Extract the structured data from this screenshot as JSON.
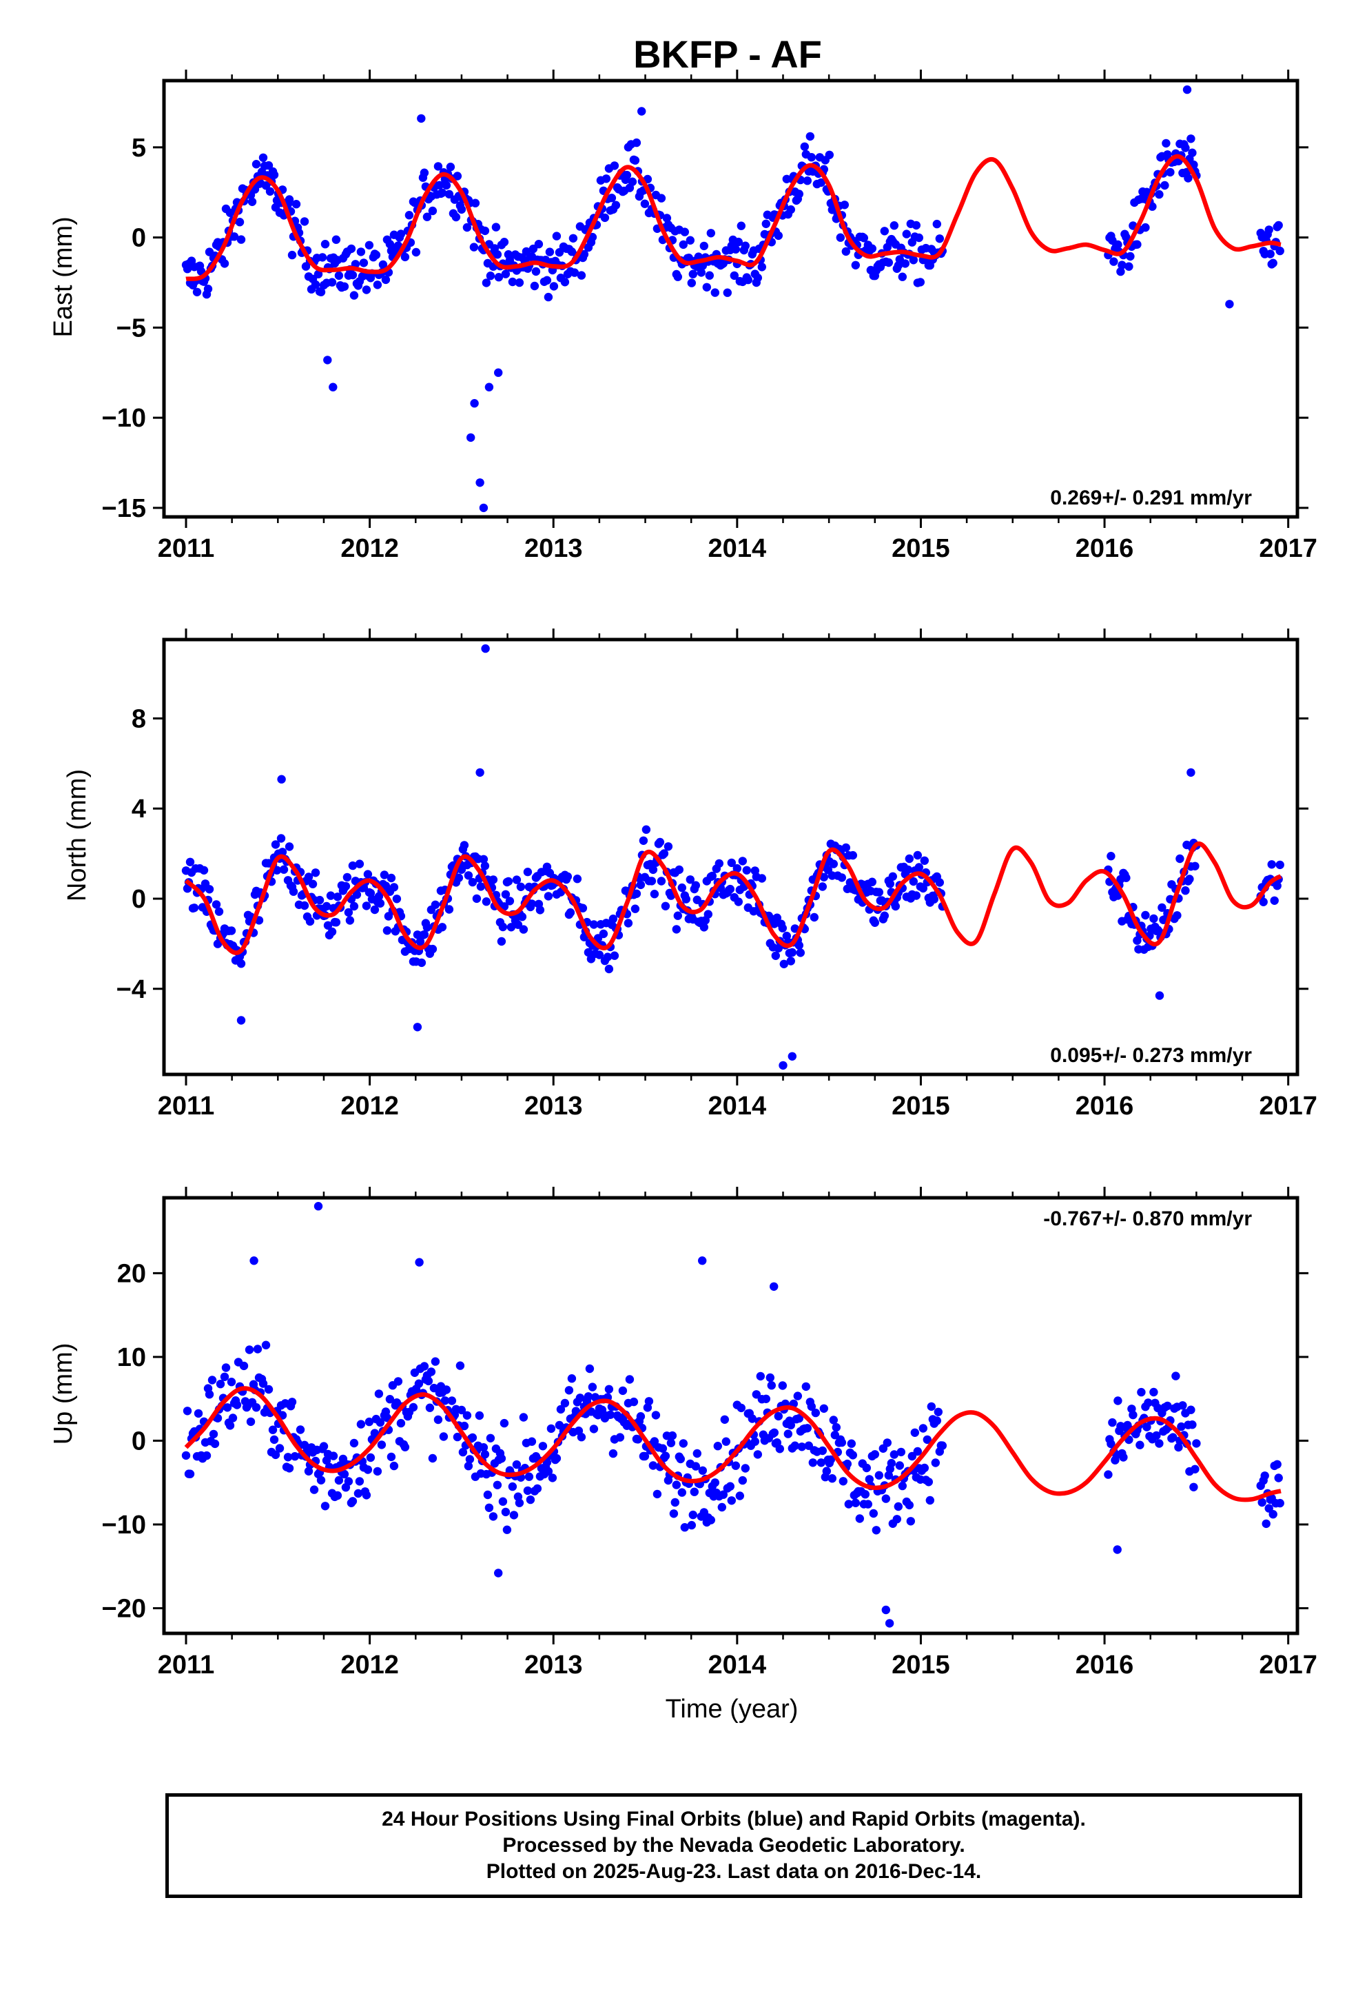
{
  "title": "BKFP - AF",
  "xlabel": "Time (year)",
  "footer": {
    "line1": "24 Hour Positions Using Final Orbits (blue) and Rapid Orbits (magenta).",
    "line2": "Processed by the Nevada Geodetic Laboratory.",
    "line3": "Plotted on 2025-Aug-23. Last data on 2016-Dec-14."
  },
  "colors": {
    "final_points": "#0000ff",
    "model": "#ff0000",
    "frame": "#000000"
  },
  "chart_data": [
    {
      "type": "scatter",
      "name": "east",
      "ylabel": "East (mm)",
      "rate": "0.269+/- 0.291 mm/yr",
      "rate_position": "bottom-right",
      "xlim": [
        2010.88,
        2017.05
      ],
      "ylim": [
        -15.5,
        8.7
      ],
      "xticks": [
        2011,
        2012,
        2013,
        2014,
        2015,
        2016,
        2017
      ],
      "yticks": [
        5,
        0,
        -5,
        -10,
        -15
      ],
      "ytick_labels": [
        "5",
        "0",
        "−5",
        "−10",
        "−15"
      ],
      "data_segments": [
        [
          2011.0,
          2015.12
        ],
        [
          2016.02,
          2016.5
        ],
        [
          2016.85,
          2016.96
        ]
      ],
      "scatter_spread": 1.1,
      "model_curve": {
        "x": [
          2011.0,
          2011.1,
          2011.2,
          2011.3,
          2011.4,
          2011.5,
          2011.6,
          2011.7,
          2011.8,
          2011.9,
          2012.0,
          2012.1,
          2012.2,
          2012.3,
          2012.4,
          2012.5,
          2012.6,
          2012.7,
          2012.8,
          2012.9,
          2013.0,
          2013.1,
          2013.2,
          2013.3,
          2013.4,
          2013.5,
          2013.6,
          2013.7,
          2013.8,
          2013.9,
          2014.0,
          2014.1,
          2014.2,
          2014.3,
          2014.4,
          2014.5,
          2014.6,
          2014.7,
          2014.8,
          2014.9,
          2015.0,
          2015.1,
          2015.2,
          2015.3,
          2015.4,
          2015.5,
          2015.6,
          2015.7,
          2015.8,
          2015.9,
          2016.0,
          2016.1,
          2016.2,
          2016.3,
          2016.4,
          2016.5,
          2016.6,
          2016.7,
          2016.8,
          2016.9,
          2016.96
        ],
        "y": [
          -2.3,
          -2.1,
          -0.6,
          1.9,
          3.3,
          2.6,
          0.1,
          -1.6,
          -1.8,
          -1.7,
          -1.9,
          -1.7,
          -0.2,
          2.3,
          3.5,
          2.5,
          0.0,
          -1.5,
          -1.6,
          -1.4,
          -1.6,
          -1.4,
          0.4,
          2.6,
          3.9,
          2.9,
          0.3,
          -1.3,
          -1.3,
          -1.1,
          -1.3,
          -1.4,
          0.6,
          2.9,
          4.0,
          2.9,
          0.1,
          -1.0,
          -0.9,
          -0.8,
          -1.0,
          -0.9,
          1.3,
          3.6,
          4.3,
          2.7,
          0.3,
          -0.7,
          -0.6,
          -0.4,
          -0.7,
          -0.8,
          1.0,
          3.4,
          4.5,
          3.2,
          0.5,
          -0.6,
          -0.5,
          -0.3,
          -0.4
        ]
      },
      "notable_points": [
        {
          "x": 2012.62,
          "y": -15.0
        },
        {
          "x": 2012.6,
          "y": -13.6
        },
        {
          "x": 2012.55,
          "y": -11.1
        },
        {
          "x": 2012.57,
          "y": -9.2
        },
        {
          "x": 2012.65,
          "y": -8.3
        },
        {
          "x": 2012.7,
          "y": -7.5
        },
        {
          "x": 2011.8,
          "y": -8.3
        },
        {
          "x": 2011.77,
          "y": -6.8
        },
        {
          "x": 2016.45,
          "y": 8.2
        },
        {
          "x": 2013.48,
          "y": 7.0
        },
        {
          "x": 2012.28,
          "y": 6.6
        },
        {
          "x": 2016.68,
          "y": -3.7
        }
      ]
    },
    {
      "type": "scatter",
      "name": "north",
      "ylabel": "North (mm)",
      "rate": "0.095+/- 0.273 mm/yr",
      "rate_position": "bottom-right",
      "xlim": [
        2010.88,
        2017.05
      ],
      "ylim": [
        -7.8,
        11.5
      ],
      "xticks": [
        2011,
        2012,
        2013,
        2014,
        2015,
        2016,
        2017
      ],
      "yticks": [
        8,
        4,
        0,
        -4
      ],
      "ytick_labels": [
        "8",
        "4",
        "0",
        "−4"
      ],
      "data_segments": [
        [
          2011.0,
          2015.12
        ],
        [
          2016.02,
          2016.5
        ],
        [
          2016.85,
          2016.96
        ]
      ],
      "scatter_spread": 0.9,
      "model_curve": {
        "x": [
          2011.0,
          2011.1,
          2011.2,
          2011.3,
          2011.4,
          2011.5,
          2011.6,
          2011.7,
          2011.8,
          2011.9,
          2012.0,
          2012.1,
          2012.2,
          2012.3,
          2012.4,
          2012.5,
          2012.6,
          2012.7,
          2012.8,
          2012.9,
          2013.0,
          2013.1,
          2013.2,
          2013.3,
          2013.4,
          2013.5,
          2013.6,
          2013.7,
          2013.8,
          2013.9,
          2014.0,
          2014.1,
          2014.2,
          2014.3,
          2014.4,
          2014.5,
          2014.6,
          2014.7,
          2014.8,
          2014.9,
          2015.0,
          2015.1,
          2015.2,
          2015.3,
          2015.4,
          2015.5,
          2015.6,
          2015.7,
          2015.8,
          2015.9,
          2016.0,
          2016.1,
          2016.2,
          2016.3,
          2016.4,
          2016.5,
          2016.6,
          2016.7,
          2016.8,
          2016.9,
          2016.96
        ],
        "y": [
          0.8,
          0.0,
          -1.9,
          -2.3,
          -0.3,
          1.8,
          1.2,
          -0.4,
          -0.7,
          0.3,
          0.8,
          0.0,
          -1.7,
          -2.1,
          -0.3,
          1.8,
          1.2,
          -0.4,
          -0.6,
          0.4,
          0.8,
          0.0,
          -1.7,
          -2.1,
          -0.2,
          2.0,
          1.4,
          -0.3,
          -0.5,
          0.7,
          1.1,
          0.1,
          -1.6,
          -2.0,
          -0.1,
          2.1,
          1.5,
          -0.1,
          -0.4,
          0.7,
          1.1,
          0.2,
          -1.5,
          -1.9,
          0.2,
          2.2,
          1.6,
          -0.1,
          -0.2,
          0.8,
          1.2,
          0.2,
          -1.5,
          -1.9,
          0.4,
          2.4,
          1.6,
          -0.1,
          -0.3,
          0.7,
          1.0
        ]
      },
      "notable_points": [
        {
          "x": 2012.63,
          "y": 11.1
        },
        {
          "x": 2014.25,
          "y": -7.4
        },
        {
          "x": 2014.3,
          "y": -7.0
        },
        {
          "x": 2011.3,
          "y": -5.4
        },
        {
          "x": 2012.26,
          "y": -5.7
        },
        {
          "x": 2012.6,
          "y": 5.6
        },
        {
          "x": 2016.47,
          "y": 5.6
        },
        {
          "x": 2011.52,
          "y": 5.3
        },
        {
          "x": 2016.3,
          "y": -4.3
        }
      ]
    },
    {
      "type": "scatter",
      "name": "up",
      "ylabel": "Up (mm)",
      "rate": "-0.767+/- 0.870 mm/yr",
      "rate_position": "top-right",
      "xlim": [
        2010.88,
        2017.05
      ],
      "ylim": [
        -23,
        29
      ],
      "xticks": [
        2011,
        2012,
        2013,
        2014,
        2015,
        2016,
        2017
      ],
      "yticks": [
        20,
        10,
        0,
        -10,
        -20
      ],
      "ytick_labels": [
        "20",
        "10",
        "0",
        "−10",
        "−20"
      ],
      "data_segments": [
        [
          2011.0,
          2015.12
        ],
        [
          2016.02,
          2016.5
        ],
        [
          2016.85,
          2016.96
        ]
      ],
      "scatter_spread": 3.8,
      "model_curve": {
        "x": [
          2011.0,
          2011.1,
          2011.2,
          2011.3,
          2011.4,
          2011.5,
          2011.6,
          2011.7,
          2011.8,
          2011.9,
          2012.0,
          2012.1,
          2012.2,
          2012.3,
          2012.4,
          2012.5,
          2012.6,
          2012.7,
          2012.8,
          2012.9,
          2013.0,
          2013.1,
          2013.2,
          2013.3,
          2013.4,
          2013.5,
          2013.6,
          2013.7,
          2013.8,
          2013.9,
          2014.0,
          2014.1,
          2014.2,
          2014.3,
          2014.4,
          2014.5,
          2014.6,
          2014.7,
          2014.8,
          2014.9,
          2015.0,
          2015.1,
          2015.2,
          2015.3,
          2015.4,
          2015.5,
          2015.6,
          2015.7,
          2015.8,
          2015.9,
          2016.0,
          2016.1,
          2016.2,
          2016.3,
          2016.4,
          2016.5,
          2016.6,
          2016.7,
          2016.8,
          2016.9,
          2016.96
        ],
        "y": [
          -0.8,
          1.5,
          4.5,
          6.2,
          5.5,
          2.8,
          -0.6,
          -2.9,
          -3.6,
          -2.8,
          -0.9,
          1.9,
          4.6,
          5.5,
          4.0,
          1.0,
          -2.1,
          -3.8,
          -4.0,
          -3.0,
          -0.9,
          2.0,
          4.2,
          4.7,
          3.1,
          0.1,
          -3.0,
          -4.6,
          -4.7,
          -3.5,
          -1.2,
          1.6,
          3.5,
          3.9,
          2.3,
          -0.7,
          -3.8,
          -5.4,
          -5.5,
          -4.3,
          -2.0,
          0.8,
          2.9,
          3.3,
          1.7,
          -1.4,
          -4.5,
          -6.1,
          -6.2,
          -5.0,
          -2.5,
          0.2,
          2.2,
          2.6,
          1.0,
          -2.1,
          -5.2,
          -6.8,
          -7.0,
          -6.3,
          -6.0
        ]
      },
      "notable_points": [
        {
          "x": 2011.72,
          "y": 28.0
        },
        {
          "x": 2013.81,
          "y": 21.5
        },
        {
          "x": 2012.27,
          "y": 21.3
        },
        {
          "x": 2011.37,
          "y": 21.5
        },
        {
          "x": 2014.83,
          "y": -21.8
        },
        {
          "x": 2014.81,
          "y": -20.2
        },
        {
          "x": 2014.2,
          "y": 18.4
        },
        {
          "x": 2016.07,
          "y": -13.0
        },
        {
          "x": 2012.7,
          "y": -15.8
        }
      ]
    }
  ]
}
